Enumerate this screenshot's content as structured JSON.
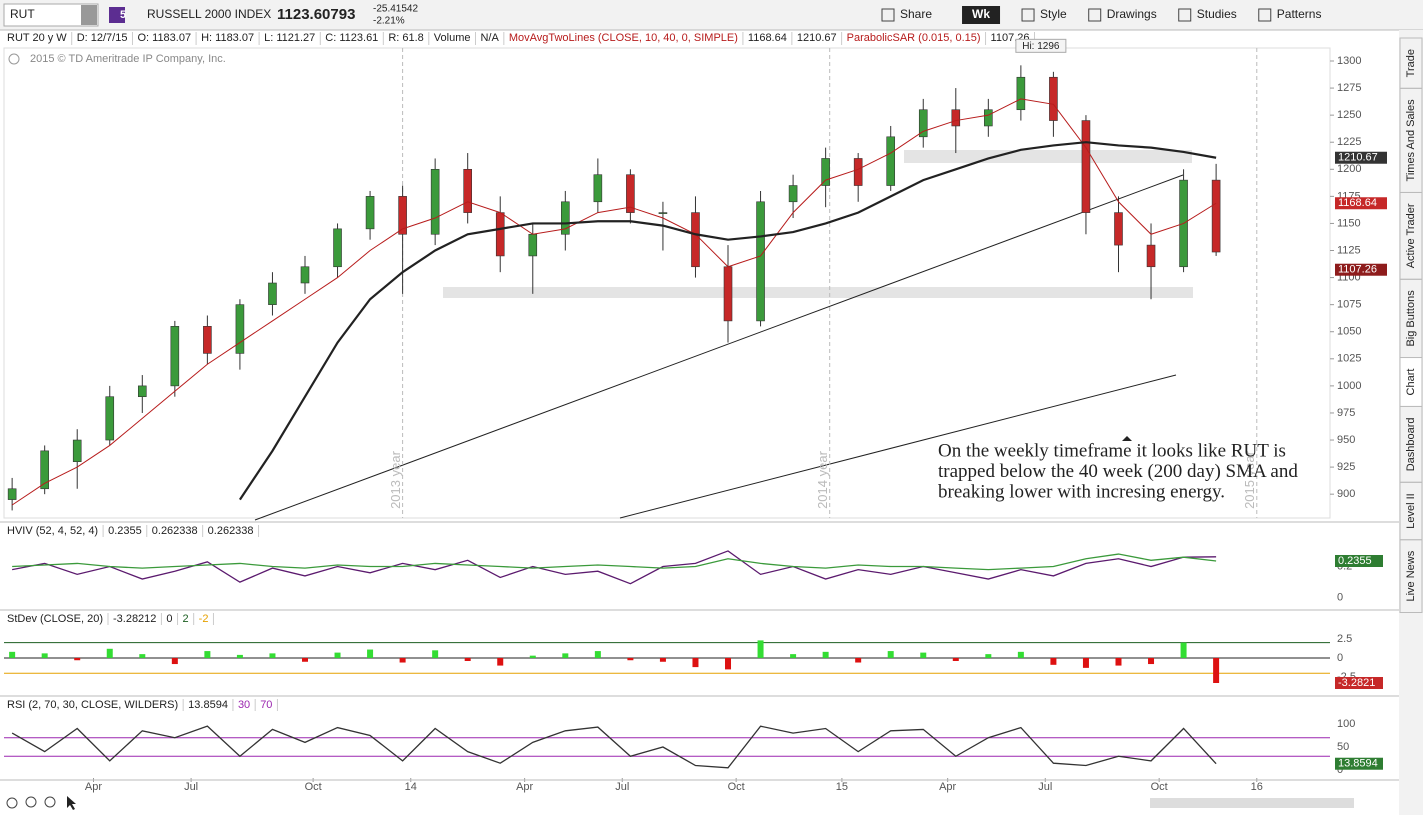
{
  "toolbar": {
    "symbol": "RUT",
    "badge": "5",
    "name": "RUSSELL 2000 INDEX",
    "last": "1123.60793",
    "change": "-25.41542",
    "change_pct": "-2.21%",
    "buttons": [
      "Share",
      "Wk",
      "Style",
      "Drawings",
      "Studies",
      "Patterns"
    ]
  },
  "header": {
    "items": [
      "RUT 20 y W",
      "D: 12/7/15",
      "O: 1183.07",
      "H: 1183.07",
      "L: 1121.27",
      "C: 1123.61",
      "R: 61.8",
      "Volume",
      "N/A"
    ],
    "study": "MovAvgTwoLines (CLOSE, 10, 40, 0, SIMPLE)",
    "study_values": [
      "1168.64",
      "1210.67"
    ],
    "sar": "ParabolicSAR (0.015, 0.15)",
    "sar_value": "1107.26"
  },
  "copyright": "2015 © TD Ameritrade IP Company, Inc.",
  "hi_label": "Hi: 1296",
  "annotation": [
    "On the weekly timeframe it looks like RUT is",
    "trapped below the 40 week (200 day) SMA and",
    "breaking lower with incresing energy."
  ],
  "chart_data": {
    "type": "candlestick",
    "x": [
      0,
      4,
      8,
      12,
      16,
      20,
      24,
      28,
      32,
      36,
      40,
      44,
      48,
      52,
      56,
      60,
      64,
      68,
      72,
      76,
      80,
      84,
      88,
      92,
      96,
      100,
      104,
      108,
      112,
      116,
      120,
      124,
      128,
      132,
      136,
      140,
      144,
      148
    ],
    "open": [
      895,
      905,
      930,
      950,
      990,
      1000,
      1055,
      1030,
      1075,
      1095,
      1110,
      1145,
      1175,
      1140,
      1200,
      1160,
      1120,
      1140,
      1170,
      1195,
      1160,
      1160,
      1110,
      1060,
      1170,
      1185,
      1210,
      1185,
      1230,
      1255,
      1240,
      1255,
      1285,
      1245,
      1160,
      1130,
      1110,
      1190
    ],
    "high": [
      915,
      945,
      960,
      1000,
      1010,
      1060,
      1065,
      1080,
      1105,
      1120,
      1150,
      1180,
      1185,
      1210,
      1215,
      1175,
      1150,
      1180,
      1210,
      1200,
      1170,
      1175,
      1130,
      1180,
      1195,
      1220,
      1215,
      1240,
      1265,
      1275,
      1265,
      1296,
      1290,
      1250,
      1175,
      1150,
      1200,
      1205
    ],
    "low": [
      885,
      900,
      905,
      945,
      975,
      990,
      1020,
      1015,
      1065,
      1085,
      1100,
      1135,
      1085,
      1130,
      1150,
      1105,
      1085,
      1125,
      1160,
      1150,
      1125,
      1100,
      1040,
      1055,
      1155,
      1165,
      1170,
      1180,
      1220,
      1215,
      1230,
      1245,
      1230,
      1140,
      1105,
      1080,
      1105,
      1120
    ],
    "close": [
      905,
      940,
      950,
      990,
      1000,
      1055,
      1030,
      1075,
      1095,
      1110,
      1145,
      1175,
      1140,
      1200,
      1160,
      1120,
      1140,
      1170,
      1195,
      1160,
      1160,
      1110,
      1060,
      1170,
      1185,
      1210,
      1185,
      1230,
      1255,
      1240,
      1255,
      1285,
      1245,
      1160,
      1130,
      1110,
      1190,
      1123.61
    ],
    "series": [
      {
        "color": "#b71c1c",
        "values": [
          890,
          910,
          925,
          945,
          970,
          995,
          1020,
          1040,
          1060,
          1080,
          1100,
          1125,
          1145,
          1155,
          1170,
          1160,
          1140,
          1145,
          1160,
          1165,
          1155,
          1140,
          1110,
          1120,
          1160,
          1190,
          1200,
          1215,
          1235,
          1245,
          1250,
          1265,
          1260,
          1220,
          1170,
          1140,
          1150,
          1168.64
        ]
      },
      {
        "color": "#222222",
        "values": [
          null,
          null,
          null,
          null,
          null,
          null,
          null,
          895,
          940,
          990,
          1040,
          1080,
          1105,
          1125,
          1140,
          1145,
          1150,
          1150,
          1152,
          1152,
          1148,
          1140,
          1135,
          1138,
          1142,
          1150,
          1160,
          1175,
          1190,
          1200,
          1210,
          1218,
          1222,
          1225,
          1222,
          1220,
          1216,
          1210.67
        ]
      }
    ],
    "up_color": "#3b9a3b",
    "down_color": "#c62828",
    "xlim": [
      -1,
      162
    ],
    "ylim": [
      878,
      1312
    ],
    "xticks": [
      {
        "value": 10,
        "label": "Apr"
      },
      {
        "value": 22,
        "label": "Jul"
      },
      {
        "value": 37,
        "label": "Oct"
      },
      {
        "value": 49,
        "label": "14"
      },
      {
        "value": 63,
        "label": "Apr"
      },
      {
        "value": 75,
        "label": "Jul"
      },
      {
        "value": 89,
        "label": "Oct"
      },
      {
        "value": 102,
        "label": "15"
      },
      {
        "value": 115,
        "label": "Apr"
      },
      {
        "value": 127,
        "label": "Jul"
      },
      {
        "value": 141,
        "label": "Oct"
      },
      {
        "value": 153,
        "label": "16"
      }
    ],
    "yticks": [
      900,
      925,
      950,
      975,
      1000,
      1025,
      1050,
      1075,
      1100,
      1125,
      1150,
      1175,
      1200,
      1225,
      1250,
      1275,
      1300
    ],
    "year_markers": [
      {
        "value": 48,
        "label": "2013 year"
      },
      {
        "value": 100.5,
        "label": "2014 year"
      },
      {
        "value": 153,
        "label": "2015 year"
      }
    ],
    "price_tags": [
      1210.67,
      1168.64,
      1107.26
    ],
    "tag_colors": [
      "#333333",
      "#c62828",
      "#8e1c1c"
    ]
  },
  "indicators": [
    {
      "title": "HVIV (52, 4, 52, 4)",
      "readouts": [
        "0.2355",
        "0.262338",
        "0.262338"
      ],
      "ylim": [
        -0.04,
        0.37
      ],
      "yticks": [
        0,
        0.2
      ],
      "tag": 0.2355,
      "tag_color": "#2e7d32",
      "series": [
        {
          "color": "#5b1a6e",
          "values": [
            0.18,
            0.22,
            0.15,
            0.2,
            0.12,
            0.17,
            0.23,
            0.1,
            0.19,
            0.14,
            0.2,
            0.16,
            0.22,
            0.18,
            0.24,
            0.13,
            0.2,
            0.15,
            0.17,
            0.09,
            0.2,
            0.22,
            0.3,
            0.15,
            0.2,
            0.12,
            0.18,
            0.15,
            0.2,
            0.16,
            0.12,
            0.18,
            0.14,
            0.22,
            0.25,
            0.2,
            0.26,
            0.262338
          ]
        },
        {
          "color": "#3b9a3b",
          "values": [
            0.2,
            0.21,
            0.22,
            0.2,
            0.19,
            0.2,
            0.21,
            0.22,
            0.2,
            0.19,
            0.21,
            0.2,
            0.2,
            0.22,
            0.21,
            0.2,
            0.19,
            0.2,
            0.21,
            0.2,
            0.19,
            0.2,
            0.25,
            0.22,
            0.2,
            0.19,
            0.21,
            0.2,
            0.2,
            0.19,
            0.18,
            0.19,
            0.2,
            0.25,
            0.28,
            0.24,
            0.26,
            0.2355
          ]
        }
      ]
    },
    {
      "title": "StDev (CLOSE, 20)",
      "readouts": [
        "-3.28212"
      ],
      "levels": [
        0,
        2,
        -2
      ],
      "level_colors": [
        "#222222",
        "#1b5e20",
        "#e6a100"
      ],
      "ylim": [
        -4.2,
        3.4
      ],
      "yticks": [
        2.5,
        0,
        -2.5
      ],
      "tag": -3.2821,
      "tag_color": "#c62828",
      "bars_up": "#33dd33",
      "bars_down": "#dd1111",
      "bars": [
        0.8,
        0.6,
        -0.3,
        1.2,
        0.5,
        -0.8,
        0.9,
        0.4,
        0.6,
        -0.5,
        0.7,
        1.1,
        -0.6,
        1.0,
        -0.4,
        -1.0,
        0.3,
        0.6,
        0.9,
        -0.3,
        -0.5,
        -1.2,
        -1.5,
        2.3,
        0.5,
        0.8,
        -0.6,
        0.9,
        0.7,
        -0.4,
        0.5,
        0.8,
        -0.9,
        -1.3,
        -1.0,
        -0.8,
        2.0,
        -3.28212
      ]
    },
    {
      "title": "RSI (2, 70, 30, CLOSE, WILDERS)",
      "readouts": [
        "13.8594"
      ],
      "levels": [
        30,
        70
      ],
      "level_colors": [
        "#9c27b0",
        "#9c27b0"
      ],
      "ylim": [
        -17,
        117
      ],
      "yticks": [
        100,
        50,
        0
      ],
      "tag": 13.8594,
      "tag_color": "#2e7d32",
      "series": [
        {
          "color": "#333333",
          "values": [
            80,
            40,
            90,
            20,
            85,
            70,
            95,
            30,
            88,
            60,
            92,
            75,
            20,
            90,
            40,
            15,
            60,
            85,
            93,
            30,
            50,
            10,
            5,
            95,
            80,
            90,
            40,
            85,
            88,
            30,
            70,
            92,
            15,
            10,
            30,
            20,
            90,
            13.8594
          ]
        }
      ]
    }
  ],
  "sidebar": [
    "Trade",
    "Times And Sales",
    "Active Trader",
    "Big Buttons",
    "Chart",
    "Dashboard",
    "Level II",
    "Live News"
  ]
}
